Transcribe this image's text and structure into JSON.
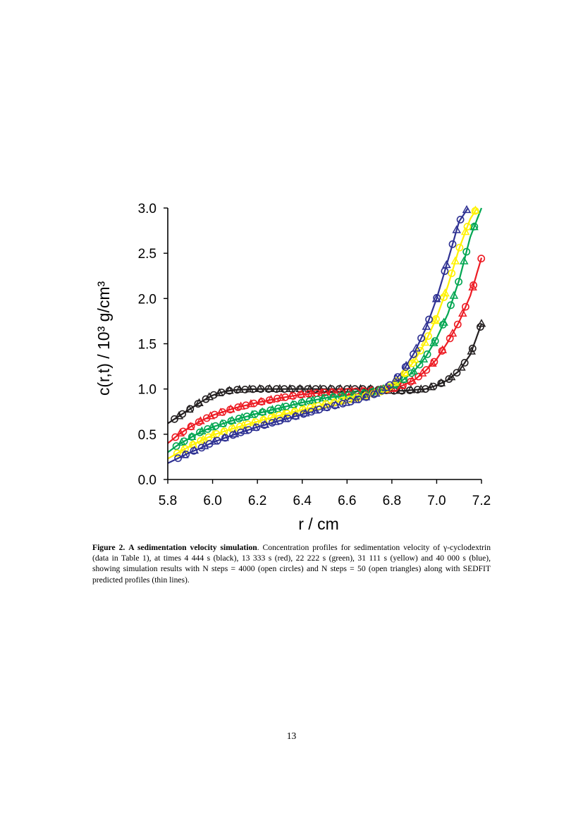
{
  "figure": {
    "caption_label": "Figure 2.",
    "caption_title": "A sedimentation velocity simulation",
    "caption_text": ". Concentration profiles for sedimentation velocity of γ-cyclodextrin (data in Table 1), at times 4 444 s (black), 13 333 s (red), 22 222 s (green), 31 111 s (yellow) and 40 000 s (blue), showing simulation results with N steps = 4000 (open circles) and N steps = 50 (open triangles) along with SEDFIT predicted profiles (thin lines)."
  },
  "page_number": "13",
  "chart_data": {
    "type": "line",
    "xlabel": "r / cm",
    "ylabel": "c(r,t)  / 10³ g/cm³",
    "xlim": [
      5.8,
      7.2
    ],
    "ylim": [
      0.0,
      3.0
    ],
    "xticks": [
      "5.8",
      "6.0",
      "6.2",
      "6.4",
      "6.6",
      "6.8",
      "7.0",
      "7.2"
    ],
    "yticks": [
      "0.0",
      "0.5",
      "1.0",
      "1.5",
      "2.0",
      "2.5",
      "3.0"
    ],
    "grid": false,
    "legend": "none",
    "marker_types": [
      "open circles (N steps = 4000)",
      "open triangles (N steps = 50)",
      "thin lines (SEDFIT)"
    ],
    "series": [
      {
        "color": "#231f20",
        "x": [
          5.8,
          5.85,
          5.9,
          5.95,
          6.0,
          6.05,
          6.1,
          6.2,
          6.3,
          6.4,
          6.5,
          6.6,
          6.7,
          6.75,
          6.8,
          6.85,
          6.9,
          6.95,
          7.0,
          7.05,
          7.1,
          7.15,
          7.2
        ],
        "y": [
          0.62,
          0.7,
          0.78,
          0.86,
          0.93,
          0.97,
          0.99,
          1.0,
          1.0,
          1.0,
          1.0,
          1.0,
          1.0,
          0.99,
          0.98,
          0.98,
          0.99,
          1.0,
          1.04,
          1.1,
          1.2,
          1.38,
          1.72
        ]
      },
      {
        "color": "#ed1c24",
        "x": [
          5.8,
          5.85,
          5.9,
          5.95,
          6.0,
          6.1,
          6.2,
          6.3,
          6.4,
          6.5,
          6.6,
          6.7,
          6.75,
          6.8,
          6.85,
          6.9,
          6.95,
          7.0,
          7.05,
          7.1,
          7.15,
          7.2
        ],
        "y": [
          0.4,
          0.5,
          0.58,
          0.65,
          0.71,
          0.79,
          0.85,
          0.9,
          0.94,
          0.96,
          0.97,
          0.98,
          0.99,
          1.0,
          1.04,
          1.1,
          1.2,
          1.33,
          1.52,
          1.74,
          2.03,
          2.45
        ]
      },
      {
        "color": "#00a651",
        "x": [
          5.8,
          5.85,
          5.9,
          5.95,
          6.0,
          6.1,
          6.2,
          6.3,
          6.4,
          6.5,
          6.6,
          6.7,
          6.75,
          6.8,
          6.85,
          6.9,
          6.95,
          7.0,
          7.05,
          7.1,
          7.15,
          7.2
        ],
        "y": [
          0.3,
          0.39,
          0.46,
          0.53,
          0.58,
          0.66,
          0.73,
          0.79,
          0.85,
          0.9,
          0.93,
          0.96,
          0.99,
          1.03,
          1.1,
          1.2,
          1.35,
          1.56,
          1.83,
          2.2,
          2.68,
          3.0
        ]
      },
      {
        "color": "#fff200",
        "x": [
          5.8,
          5.85,
          5.9,
          5.95,
          6.0,
          6.1,
          6.2,
          6.3,
          6.4,
          6.5,
          6.6,
          6.7,
          6.75,
          6.8,
          6.85,
          6.9,
          6.95,
          7.0,
          7.05,
          7.1,
          7.15,
          7.18
        ],
        "y": [
          0.23,
          0.3,
          0.37,
          0.43,
          0.49,
          0.57,
          0.64,
          0.71,
          0.77,
          0.83,
          0.88,
          0.93,
          0.97,
          1.04,
          1.15,
          1.31,
          1.52,
          1.79,
          2.14,
          2.55,
          2.88,
          3.0
        ]
      },
      {
        "color": "#2e3192",
        "x": [
          5.8,
          5.85,
          5.9,
          5.95,
          6.0,
          6.1,
          6.2,
          6.3,
          6.4,
          6.5,
          6.6,
          6.7,
          6.75,
          6.8,
          6.85,
          6.9,
          6.95,
          7.0,
          7.05,
          7.1,
          7.14
        ],
        "y": [
          0.18,
          0.24,
          0.3,
          0.35,
          0.41,
          0.5,
          0.58,
          0.65,
          0.72,
          0.79,
          0.85,
          0.92,
          0.97,
          1.06,
          1.2,
          1.4,
          1.66,
          2.0,
          2.42,
          2.85,
          3.0
        ]
      }
    ]
  }
}
